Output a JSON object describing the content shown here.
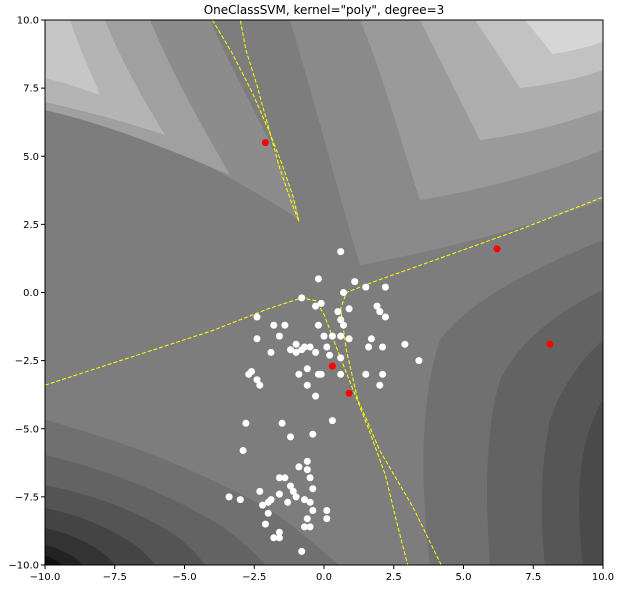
{
  "chart_data": {
    "type": "scatter",
    "title": "OneClassSVM, kernel=\"poly\", degree=3",
    "xlabel": "",
    "ylabel": "",
    "xlim": [
      -10,
      10
    ],
    "ylim": [
      -10,
      10
    ],
    "x_ticks": [
      -10,
      -7.5,
      -5,
      -2.5,
      0,
      2.5,
      5,
      7.5,
      10
    ],
    "y_ticks": [
      -10,
      -7.5,
      -5,
      -2.5,
      0,
      2.5,
      5,
      7.5,
      10
    ],
    "x_tick_labels": [
      "−10.0",
      "−7.5",
      "−5.0",
      "−2.5",
      "0.0",
      "2.5",
      "5.0",
      "7.5",
      "10.0"
    ],
    "y_tick_labels": [
      "−10.0",
      "−7.5",
      "−5.0",
      "−2.5",
      "0.0",
      "2.5",
      "5.0",
      "7.5",
      "10.0"
    ],
    "grid": false,
    "background": "grayscale filled contour of the decision function",
    "decision_boundary_color": "#ffff00",
    "inlier_color": "#ffffff",
    "outlier_color": "#ff0000",
    "series": [
      {
        "role": "inliers",
        "points": [
          [
            0.6,
            1.5
          ],
          [
            -0.2,
            0.5
          ],
          [
            1.1,
            0.4
          ],
          [
            0.7,
            0.0
          ],
          [
            1.5,
            0.2
          ],
          [
            2.2,
            0.2
          ],
          [
            -0.8,
            -0.2
          ],
          [
            -0.3,
            -0.5
          ],
          [
            -0.1,
            -0.4
          ],
          [
            0.5,
            -0.7
          ],
          [
            0.9,
            -0.6
          ],
          [
            2.0,
            -0.7
          ],
          [
            1.9,
            -0.5
          ],
          [
            -2.4,
            -0.9
          ],
          [
            -1.8,
            -1.2
          ],
          [
            -1.4,
            -1.2
          ],
          [
            -0.2,
            -1.2
          ],
          [
            0.6,
            -1.0
          ],
          [
            0.7,
            -1.2
          ],
          [
            2.2,
            -0.9
          ],
          [
            0.0,
            -1.6
          ],
          [
            0.3,
            -1.6
          ],
          [
            0.6,
            -1.6
          ],
          [
            0.9,
            -1.7
          ],
          [
            1.7,
            -1.7
          ],
          [
            -2.4,
            -1.7
          ],
          [
            -1.6,
            -1.6
          ],
          [
            -1.0,
            -1.9
          ],
          [
            -0.7,
            -2.0
          ],
          [
            -0.5,
            -2.0
          ],
          [
            0.1,
            -2.0
          ],
          [
            1.6,
            -2.0
          ],
          [
            2.1,
            -2.0
          ],
          [
            2.9,
            -1.9
          ],
          [
            -1.2,
            -2.1
          ],
          [
            -0.8,
            -2.1
          ],
          [
            -1.0,
            -2.2
          ],
          [
            -1.9,
            -2.2
          ],
          [
            -0.3,
            -2.2
          ],
          [
            0.2,
            -2.3
          ],
          [
            0.6,
            -2.4
          ],
          [
            -0.6,
            -2.8
          ],
          [
            3.4,
            -2.5
          ],
          [
            -2.6,
            -2.9
          ],
          [
            -2.7,
            -3.0
          ],
          [
            -2.4,
            -3.2
          ],
          [
            -0.9,
            -3.0
          ],
          [
            -0.2,
            -3.0
          ],
          [
            -0.1,
            -3.0
          ],
          [
            0.6,
            -3.0
          ],
          [
            1.5,
            -3.0
          ],
          [
            2.1,
            -3.0
          ],
          [
            -2.3,
            -3.4
          ],
          [
            -0.6,
            -3.4
          ],
          [
            -0.3,
            -3.8
          ],
          [
            2.0,
            -3.4
          ],
          [
            -2.8,
            -4.8
          ],
          [
            -1.5,
            -4.8
          ],
          [
            0.3,
            -4.7
          ],
          [
            -1.2,
            -5.3
          ],
          [
            -0.4,
            -5.2
          ],
          [
            -2.9,
            -5.8
          ],
          [
            -0.9,
            -6.4
          ],
          [
            -0.6,
            -6.2
          ],
          [
            -0.6,
            -6.5
          ],
          [
            -0.5,
            -6.8
          ],
          [
            -1.6,
            -6.8
          ],
          [
            -1.4,
            -6.8
          ],
          [
            -1.2,
            -7.1
          ],
          [
            -1.1,
            -7.3
          ],
          [
            -1.6,
            -7.4
          ],
          [
            -0.4,
            -7.2
          ],
          [
            -2.3,
            -7.3
          ],
          [
            -3.4,
            -7.5
          ],
          [
            -3.0,
            -7.6
          ],
          [
            -1.9,
            -7.6
          ],
          [
            -2.0,
            -7.7
          ],
          [
            -2.2,
            -7.8
          ],
          [
            -1.0,
            -7.5
          ],
          [
            -0.7,
            -7.6
          ],
          [
            -1.3,
            -7.7
          ],
          [
            -0.5,
            -7.7
          ],
          [
            -0.4,
            -8.0
          ],
          [
            0.1,
            -8.0
          ],
          [
            -2.0,
            -8.1
          ],
          [
            -0.6,
            -8.3
          ],
          [
            0.1,
            -8.3
          ],
          [
            -2.1,
            -8.5
          ],
          [
            -0.7,
            -8.6
          ],
          [
            -0.5,
            -8.6
          ],
          [
            -1.6,
            -8.8
          ],
          [
            -1.8,
            -9.0
          ],
          [
            -1.6,
            -9.0
          ],
          [
            -0.8,
            -9.5
          ]
        ]
      },
      {
        "role": "outliers",
        "points": [
          [
            -2.1,
            5.5
          ],
          [
            6.2,
            1.6
          ],
          [
            8.1,
            -1.9
          ],
          [
            0.3,
            -2.7
          ],
          [
            0.9,
            -3.7
          ]
        ]
      }
    ],
    "decision_boundary_paths": [
      [
        [
          -4.0,
          10.0
        ],
        [
          -3.3,
          8.8
        ],
        [
          -2.6,
          7.4
        ],
        [
          -2.0,
          6.0
        ],
        [
          -1.5,
          4.7
        ],
        [
          -1.1,
          3.5
        ],
        [
          -0.9,
          2.6
        ],
        [
          -1.2,
          3.4
        ],
        [
          -1.6,
          4.6
        ],
        [
          -2.0,
          6.1
        ],
        [
          -2.4,
          7.6
        ],
        [
          -2.8,
          8.9
        ],
        [
          -3.0,
          10.0
        ]
      ],
      [
        [
          -10.0,
          -3.4
        ],
        [
          -7.0,
          -2.4
        ],
        [
          -4.0,
          -1.4
        ],
        [
          -2.0,
          -0.6
        ],
        [
          -0.8,
          -0.2
        ],
        [
          -0.3,
          -0.3
        ],
        [
          0.0,
          -0.8
        ],
        [
          0.4,
          -1.9
        ],
        [
          0.9,
          -3.2
        ],
        [
          1.6,
          -5.0
        ],
        [
          2.2,
          -6.7
        ],
        [
          2.6,
          -8.4
        ],
        [
          3.0,
          -10.0
        ]
      ],
      [
        [
          4.2,
          -10.0
        ],
        [
          3.2,
          -7.9
        ],
        [
          2.0,
          -5.8
        ],
        [
          1.2,
          -3.9
        ],
        [
          0.8,
          -2.1
        ],
        [
          0.6,
          -0.6
        ],
        [
          0.8,
          0.0
        ],
        [
          1.8,
          0.4
        ],
        [
          4.0,
          1.2
        ],
        [
          7.0,
          2.3
        ],
        [
          10.0,
          3.5
        ]
      ]
    ]
  }
}
